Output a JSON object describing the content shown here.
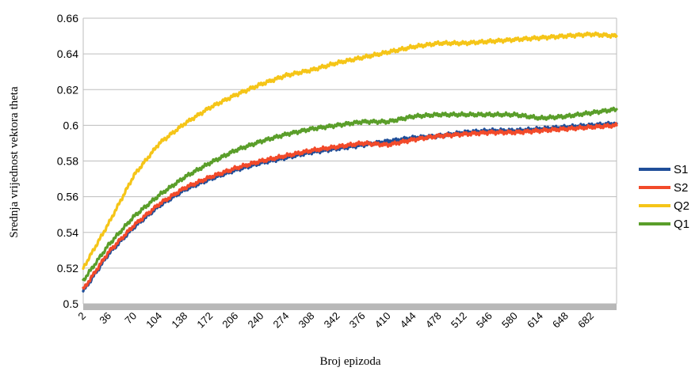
{
  "chart_data": {
    "type": "line",
    "xlabel": "Broj epizoda",
    "ylabel": "Srednja vrijednost vektora theta",
    "ylim": [
      0.5,
      0.66
    ],
    "yticks": [
      "0.5",
      "0.52",
      "0.54",
      "0.56",
      "0.58",
      "0.6",
      "0.62",
      "0.64",
      "0.66"
    ],
    "xlim": [
      2,
      716
    ],
    "xticks": [
      "2",
      "36",
      "70",
      "104",
      "138",
      "172",
      "206",
      "240",
      "274",
      "308",
      "342",
      "376",
      "410",
      "444",
      "478",
      "512",
      "546",
      "580",
      "614",
      "648",
      "682"
    ],
    "grid": "horizontal",
    "legend_position": "right",
    "series": [
      {
        "name": "S1",
        "color": "#1f4e99",
        "x": [
          2,
          36,
          70,
          104,
          138,
          172,
          206,
          240,
          274,
          308,
          342,
          376,
          410,
          444,
          478,
          512,
          546,
          580,
          614,
          648,
          682,
          716
        ],
        "values": [
          0.507,
          0.528,
          0.543,
          0.555,
          0.564,
          0.57,
          0.575,
          0.579,
          0.582,
          0.585,
          0.587,
          0.589,
          0.591,
          0.593,
          0.594,
          0.596,
          0.597,
          0.597,
          0.598,
          0.599,
          0.6,
          0.601
        ]
      },
      {
        "name": "S2",
        "color": "#f24a2a",
        "x": [
          2,
          36,
          70,
          104,
          138,
          172,
          206,
          240,
          274,
          308,
          342,
          376,
          410,
          444,
          478,
          512,
          546,
          580,
          614,
          648,
          682,
          716
        ],
        "values": [
          0.508,
          0.529,
          0.544,
          0.556,
          0.565,
          0.571,
          0.576,
          0.58,
          0.583,
          0.586,
          0.588,
          0.59,
          0.589,
          0.592,
          0.594,
          0.595,
          0.596,
          0.596,
          0.597,
          0.598,
          0.599,
          0.6
        ]
      },
      {
        "name": "Q2",
        "color": "#f5c518",
        "x": [
          2,
          36,
          70,
          104,
          138,
          172,
          206,
          240,
          274,
          308,
          342,
          376,
          410,
          444,
          478,
          512,
          546,
          580,
          614,
          648,
          682,
          716
        ],
        "values": [
          0.52,
          0.545,
          0.572,
          0.59,
          0.601,
          0.61,
          0.617,
          0.623,
          0.628,
          0.631,
          0.635,
          0.638,
          0.641,
          0.644,
          0.646,
          0.646,
          0.647,
          0.648,
          0.649,
          0.65,
          0.651,
          0.65
        ]
      },
      {
        "name": "Q1",
        "color": "#5a9e2a",
        "x": [
          2,
          36,
          70,
          104,
          138,
          172,
          206,
          240,
          274,
          308,
          342,
          376,
          410,
          444,
          478,
          512,
          546,
          580,
          614,
          648,
          682,
          716
        ],
        "values": [
          0.513,
          0.533,
          0.549,
          0.561,
          0.571,
          0.579,
          0.586,
          0.591,
          0.595,
          0.598,
          0.6,
          0.602,
          0.602,
          0.605,
          0.606,
          0.606,
          0.606,
          0.606,
          0.604,
          0.605,
          0.607,
          0.609
        ]
      }
    ]
  }
}
